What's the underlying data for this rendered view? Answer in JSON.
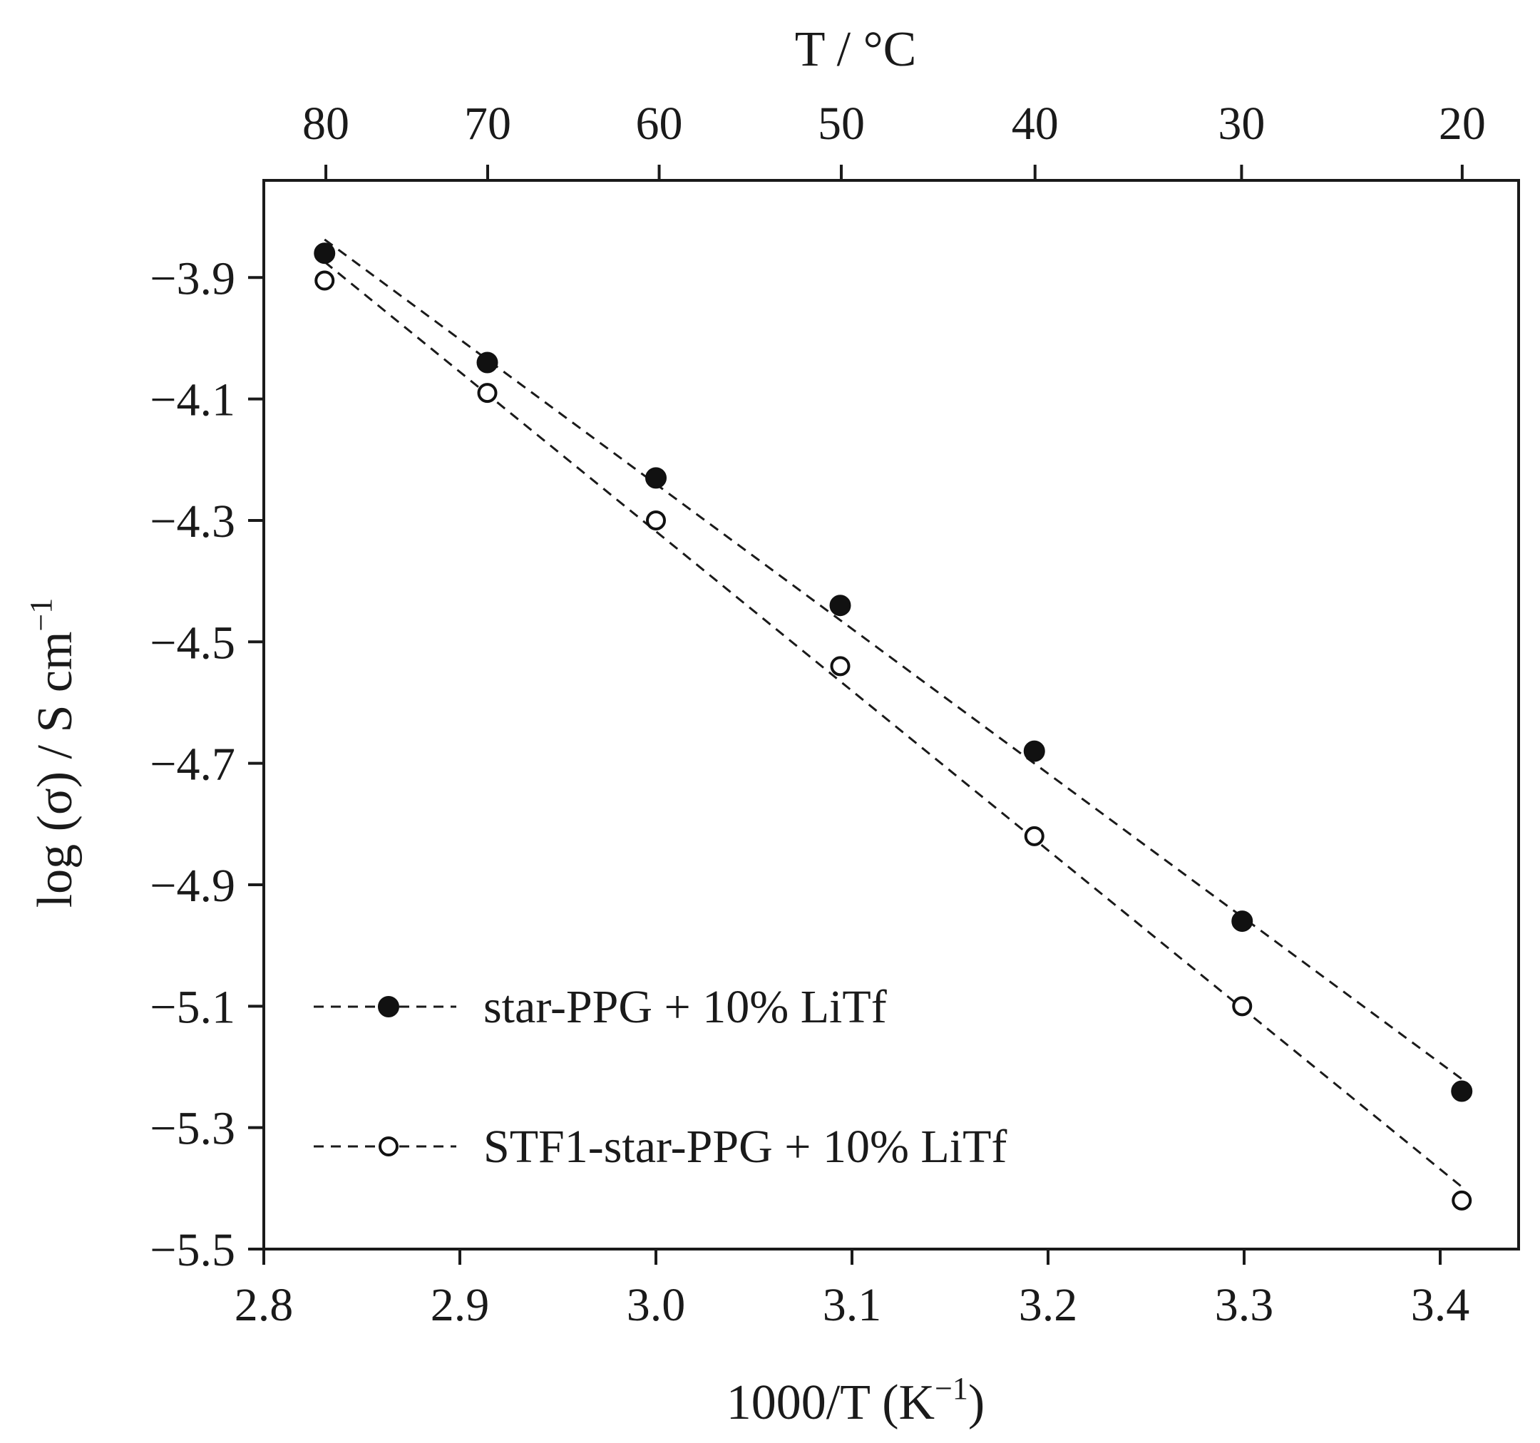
{
  "chart_data": {
    "type": "scatter",
    "title": "",
    "xlabel": "1000/T (K",
    "xlabel_sup": "−1",
    "xlabel_end": ")",
    "ylabel": "log (σ) / S cm",
    "ylabel_sup": "−1",
    "top_xlabel": "T / °C",
    "xlim": [
      2.8,
      3.44
    ],
    "ylim": [
      -5.5,
      -3.74
    ],
    "x_ticks": [
      2.8,
      2.9,
      3.0,
      3.1,
      3.2,
      3.3,
      3.4
    ],
    "x_tick_labels": [
      "2.8",
      "2.9",
      "3.0",
      "3.1",
      "3.2",
      "3.3",
      "3.4"
    ],
    "y_ticks": [
      -3.9,
      -4.1,
      -4.3,
      -4.5,
      -4.7,
      -4.9,
      -5.1,
      -5.3,
      -5.5
    ],
    "y_tick_labels": [
      "−3.9",
      "−4.1",
      "−4.3",
      "−4.5",
      "−4.7",
      "−4.9",
      "−5.1",
      "−5.3",
      "−5.5"
    ],
    "top_ticks_celsius": [
      80,
      70,
      60,
      50,
      40,
      30,
      20
    ],
    "top_tick_labels": [
      "80",
      "70",
      "60",
      "50",
      "40",
      "30",
      "20"
    ],
    "grid": false,
    "legend_position": "bottom-left",
    "series": [
      {
        "name": "star-PPG + 10% LiTf",
        "marker": "filled-circle",
        "color": "#111111",
        "x": [
          2.831,
          2.914,
          3.0,
          3.094,
          3.193,
          3.299,
          3.411
        ],
        "y": [
          -3.86,
          -4.04,
          -4.23,
          -4.44,
          -4.68,
          -4.96,
          -5.24
        ]
      },
      {
        "name": "STF1-star-PPG + 10% LiTf",
        "marker": "open-circle",
        "color": "#111111",
        "x": [
          2.831,
          2.914,
          3.0,
          3.094,
          3.193,
          3.299,
          3.411
        ],
        "y": [
          -3.905,
          -4.09,
          -4.3,
          -4.54,
          -4.82,
          -5.1,
          -5.42
        ]
      }
    ]
  }
}
